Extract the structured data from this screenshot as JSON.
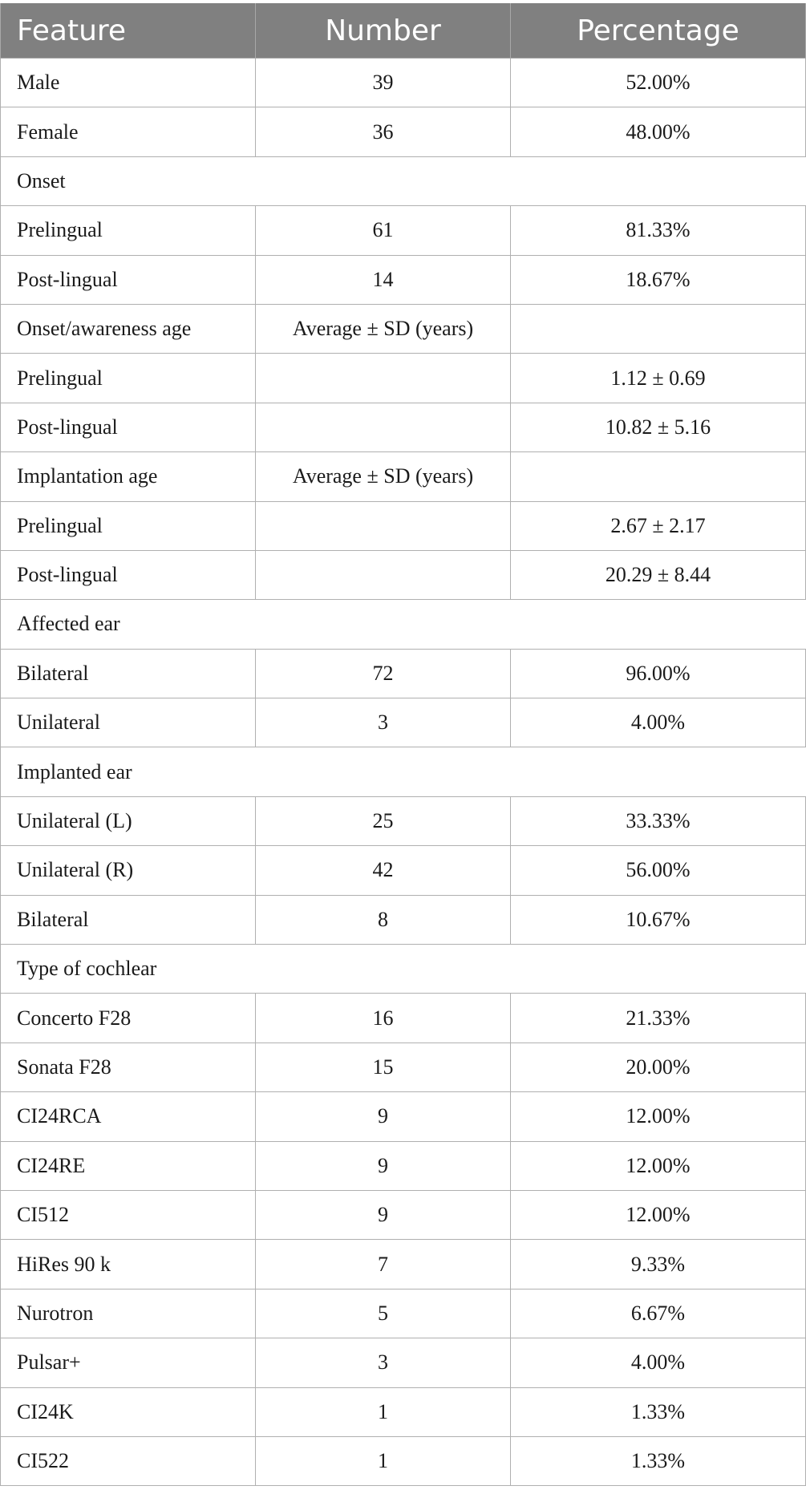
{
  "header": {
    "feature": "Feature",
    "number": "Number",
    "percentage": "Percentage"
  },
  "rows": [
    {
      "type": "data",
      "feature": "Male",
      "number": "39",
      "percentage": "52.00%"
    },
    {
      "type": "data",
      "feature": "Female",
      "number": "36",
      "percentage": "48.00%"
    },
    {
      "type": "section",
      "feature": "Onset"
    },
    {
      "type": "data",
      "feature": "Prelingual",
      "number": "61",
      "percentage": "81.33%"
    },
    {
      "type": "data",
      "feature": "Post-lingual",
      "number": "14",
      "percentage": "18.67%"
    },
    {
      "type": "data",
      "feature": "Onset/awareness age",
      "number": "Average ± SD (years)",
      "percentage": ""
    },
    {
      "type": "data",
      "feature": "Prelingual",
      "number": "",
      "percentage": "1.12 ± 0.69"
    },
    {
      "type": "data",
      "feature": "Post-lingual",
      "number": "",
      "percentage": "10.82 ± 5.16"
    },
    {
      "type": "data",
      "feature": "Implantation age",
      "number": "Average ± SD (years)",
      "percentage": ""
    },
    {
      "type": "data",
      "feature": "Prelingual",
      "number": "",
      "percentage": "2.67 ± 2.17"
    },
    {
      "type": "data",
      "feature": "Post-lingual",
      "number": "",
      "percentage": "20.29 ± 8.44"
    },
    {
      "type": "section",
      "feature": "Affected ear"
    },
    {
      "type": "data",
      "feature": "Bilateral",
      "number": "72",
      "percentage": "96.00%"
    },
    {
      "type": "data",
      "feature": "Unilateral",
      "number": "3",
      "percentage": "4.00%"
    },
    {
      "type": "section",
      "feature": "Implanted ear"
    },
    {
      "type": "data",
      "feature": "Unilateral (L)",
      "number": "25",
      "percentage": "33.33%"
    },
    {
      "type": "data",
      "feature": "Unilateral (R)",
      "number": "42",
      "percentage": "56.00%"
    },
    {
      "type": "data",
      "feature": "Bilateral",
      "number": "8",
      "percentage": "10.67%"
    },
    {
      "type": "section",
      "feature": "Type of cochlear"
    },
    {
      "type": "data",
      "feature": "Concerto F28",
      "number": "16",
      "percentage": "21.33%"
    },
    {
      "type": "data",
      "feature": "Sonata F28",
      "number": "15",
      "percentage": "20.00%"
    },
    {
      "type": "data",
      "feature": "CI24RCA",
      "number": "9",
      "percentage": "12.00%"
    },
    {
      "type": "data",
      "feature": "CI24RE",
      "number": "9",
      "percentage": "12.00%"
    },
    {
      "type": "data",
      "feature": "CI512",
      "number": "9",
      "percentage": "12.00%"
    },
    {
      "type": "data",
      "feature": "HiRes 90 k",
      "number": "7",
      "percentage": "9.33%"
    },
    {
      "type": "data",
      "feature": "Nurotron",
      "number": "5",
      "percentage": "6.67%"
    },
    {
      "type": "data",
      "feature": "Pulsar+",
      "number": "3",
      "percentage": "4.00%"
    },
    {
      "type": "data",
      "feature": "CI24K",
      "number": "1",
      "percentage": "1.33%"
    },
    {
      "type": "data",
      "feature": "CI522",
      "number": "1",
      "percentage": "1.33%"
    }
  ]
}
